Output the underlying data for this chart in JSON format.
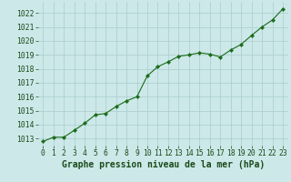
{
  "x": [
    0,
    1,
    2,
    3,
    4,
    5,
    6,
    7,
    8,
    9,
    10,
    11,
    12,
    13,
    14,
    15,
    16,
    17,
    18,
    19,
    20,
    21,
    22,
    23
  ],
  "y": [
    1012.8,
    1013.1,
    1013.1,
    1013.6,
    1014.1,
    1014.7,
    1014.8,
    1015.3,
    1015.7,
    1016.0,
    1017.5,
    1018.15,
    1018.5,
    1018.9,
    1019.0,
    1019.15,
    1019.05,
    1018.85,
    1019.35,
    1019.75,
    1020.4,
    1021.0,
    1021.5,
    1022.3
  ],
  "ylim": [
    1012.5,
    1022.8
  ],
  "yticks": [
    1013,
    1014,
    1015,
    1016,
    1017,
    1018,
    1019,
    1020,
    1021,
    1022
  ],
  "xlim": [
    -0.5,
    23.5
  ],
  "xticks": [
    0,
    1,
    2,
    3,
    4,
    5,
    6,
    7,
    8,
    9,
    10,
    11,
    12,
    13,
    14,
    15,
    16,
    17,
    18,
    19,
    20,
    21,
    22,
    23
  ],
  "xlabel": "Graphe pression niveau de la mer (hPa)",
  "line_color": "#1a6b1a",
  "marker": "D",
  "marker_size": 2.2,
  "bg_color": "#cce8e8",
  "grid_color": "#aacccc",
  "tick_label_color": "#1a4a1a",
  "xlabel_fontsize": 7.0,
  "tick_fontsize": 5.8,
  "linewidth": 0.8
}
